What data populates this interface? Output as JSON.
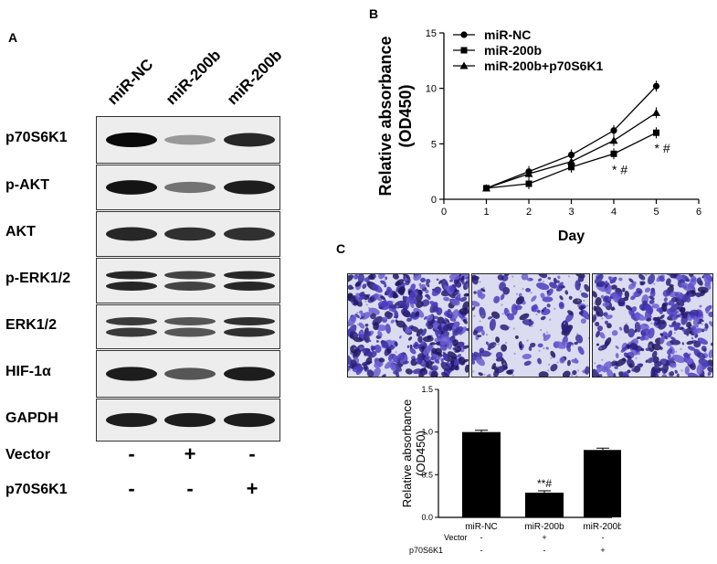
{
  "panel_labels": {
    "a": "A",
    "b": "B",
    "c": "C"
  },
  "western_blot": {
    "columns": [
      "miR-NC",
      "miR-200b",
      "miR-200b"
    ],
    "rows": [
      {
        "label": "p70S6K1",
        "intensity": [
          1.0,
          0.25,
          0.85
        ]
      },
      {
        "label": "p-AKT",
        "intensity": [
          0.95,
          0.45,
          0.9
        ]
      },
      {
        "label": "AKT",
        "intensity": [
          0.85,
          0.8,
          0.8
        ]
      },
      {
        "label": "p-ERK1/2",
        "intensity": [
          0.85,
          0.7,
          0.85
        ]
      },
      {
        "label": "ERK1/2",
        "intensity": [
          0.75,
          0.6,
          0.8
        ]
      },
      {
        "label": "HIF-1α",
        "intensity": [
          0.9,
          0.6,
          0.9
        ]
      },
      {
        "label": "GAPDH",
        "intensity": [
          0.9,
          0.9,
          0.9
        ]
      }
    ],
    "treatments": [
      {
        "label": "Vector",
        "signs": [
          "-",
          "+",
          "-"
        ]
      },
      {
        "label": "p70S6K1",
        "signs": [
          "-",
          "-",
          "+"
        ]
      }
    ]
  },
  "chart_data": [
    {
      "type": "line",
      "xlabel": "Day",
      "ylabel_line1": "Relative absorbance",
      "ylabel_line2": "(OD450)",
      "xlim": [
        0,
        6
      ],
      "ylim": [
        0,
        15
      ],
      "xticks": [
        "0",
        "1",
        "2",
        "3",
        "4",
        "5",
        "6"
      ],
      "yticks": [
        "0",
        "5",
        "10",
        "15"
      ],
      "x": [
        1,
        2,
        3,
        4,
        5
      ],
      "series": [
        {
          "name": "miR-NC",
          "marker": "circle",
          "values": [
            1.0,
            2.5,
            4.0,
            6.2,
            10.2
          ]
        },
        {
          "name": "miR-200b",
          "marker": "square",
          "values": [
            1.0,
            1.4,
            2.9,
            4.1,
            6.0
          ]
        },
        {
          "name": "miR-200b+p70S6K1",
          "marker": "triangle",
          "values": [
            1.0,
            2.3,
            3.4,
            5.3,
            7.8
          ]
        }
      ],
      "annotations": [
        {
          "x": 4,
          "text": "* #"
        },
        {
          "x": 5,
          "text": "* #"
        }
      ],
      "legend": "top-left"
    },
    {
      "type": "bar",
      "ylabel_line1": "Relative absorbance",
      "ylabel_line2": "(OD450)",
      "ylim": [
        0,
        1.5
      ],
      "yticks": [
        "0.0",
        "0.5",
        "1.0",
        "1.5"
      ],
      "categories": [
        "miR-NC",
        "miR-200b",
        "miR-200b"
      ],
      "values": [
        1.0,
        0.29,
        0.79
      ],
      "annotation": "**#",
      "treatments": [
        {
          "label": "Vector",
          "signs": [
            "-",
            "+",
            "-"
          ]
        },
        {
          "label": "p70S6K1",
          "signs": [
            "-",
            "-",
            "+"
          ]
        }
      ]
    }
  ],
  "micrographs": [
    {
      "density": 1.0
    },
    {
      "density": 0.35
    },
    {
      "density": 0.8
    }
  ]
}
